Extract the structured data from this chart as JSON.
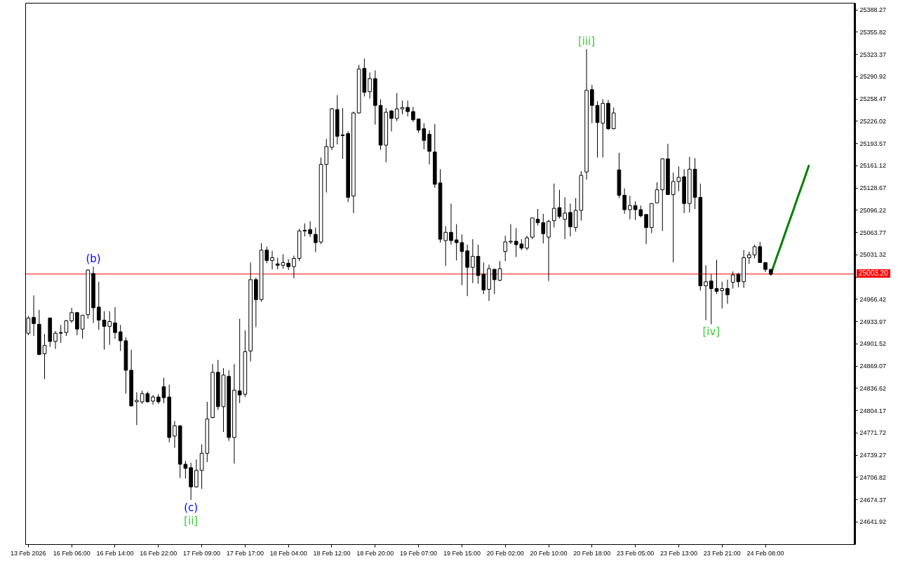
{
  "chart_data": {
    "type": "candlestick",
    "color": "#000000",
    "categories": [
      "13 Feb 2026",
      null,
      null,
      null,
      null,
      null,
      null,
      null,
      "16 Feb 06:00",
      null,
      null,
      null,
      null,
      null,
      null,
      null,
      "16 Feb 14:00",
      null,
      null,
      null,
      null,
      null,
      null,
      null,
      "16 Feb 22:00",
      null,
      null,
      null,
      null,
      null,
      null,
      null,
      "17 Feb 09:00",
      null,
      null,
      null,
      null,
      null,
      null,
      null,
      "17 Feb 17:00",
      null,
      null,
      null,
      null,
      null,
      null,
      null,
      "18 Feb 04:00",
      null,
      null,
      null,
      null,
      null,
      null,
      null,
      "18 Feb 12:00",
      null,
      null,
      null,
      null,
      null,
      null,
      null,
      "18 Feb 20:00",
      null,
      null,
      null,
      null,
      null,
      null,
      null,
      "19 Feb 07:00",
      null,
      null,
      null,
      null,
      null,
      null,
      null,
      "19 Feb 15:00",
      null,
      null,
      null,
      null,
      null,
      null,
      null,
      "20 Feb 02:00",
      null,
      null,
      null,
      null,
      null,
      null,
      null,
      "20 Feb 10:00",
      null,
      null,
      null,
      null,
      null,
      null,
      null,
      "20 Feb 18:00",
      null,
      null,
      null,
      null,
      null,
      null,
      null,
      "23 Feb 05:00",
      null,
      null,
      null,
      null,
      null,
      null,
      null,
      "23 Feb 13:00",
      null,
      null,
      null,
      null,
      null,
      null,
      null,
      "23 Feb 21:00",
      null,
      null,
      null,
      null,
      null,
      null,
      null,
      "24 Feb 08:00",
      null,
      null,
      null,
      null,
      null,
      null,
      null,
      null,
      null,
      null,
      null,
      null,
      null,
      null,
      null,
      null
    ],
    "ohlc": [
      [
        24917,
        24942,
        24914,
        24939
      ],
      [
        24940,
        24972,
        24913,
        24931
      ],
      [
        24930,
        24951,
        24885,
        24886
      ],
      [
        24887,
        24916,
        24850,
        24899
      ],
      [
        24939,
        24940,
        24897,
        24905
      ],
      [
        24905,
        24920,
        24894,
        24917
      ],
      [
        24918,
        24929,
        24903,
        24917
      ],
      [
        24918,
        24936,
        24913,
        24935
      ],
      [
        24935,
        24954,
        24932,
        24947
      ],
      [
        24947,
        24948,
        24914,
        24923
      ],
      [
        24923,
        24944,
        24909,
        24943
      ],
      [
        24944,
        25010,
        24938,
        25009
      ],
      [
        25004,
        25014,
        24932,
        24954
      ],
      [
        24955,
        24992,
        24922,
        24936
      ],
      [
        24936,
        24949,
        24893,
        24927
      ],
      [
        24927,
        24949,
        24900,
        24934
      ],
      [
        24932,
        24955,
        24909,
        24918
      ],
      [
        24919,
        24929,
        24891,
        24906
      ],
      [
        24906,
        24911,
        24829,
        24863
      ],
      [
        24863,
        24893,
        24810,
        24811
      ],
      [
        24817,
        24831,
        24783,
        24819
      ],
      [
        24817,
        24833,
        24814,
        24829
      ],
      [
        24829,
        24832,
        24816,
        24817
      ],
      [
        24818,
        24827,
        24813,
        24824
      ],
      [
        24824,
        24828,
        24814,
        24817
      ],
      [
        24839,
        24852,
        24815,
        24823
      ],
      [
        24824,
        24842,
        24758,
        24765
      ],
      [
        24767,
        24789,
        24750,
        24782
      ],
      [
        24782,
        24783,
        24706,
        24726
      ],
      [
        24726,
        24731,
        24705,
        24720
      ],
      [
        24721,
        24728,
        24674,
        24693
      ],
      [
        24693,
        24733,
        24692,
        24717
      ],
      [
        24717,
        24755,
        24690,
        24742
      ],
      [
        24742,
        24817,
        24729,
        24792
      ],
      [
        24794,
        24872,
        24793,
        24860
      ],
      [
        24860,
        24878,
        24805,
        24810
      ],
      [
        24810,
        24866,
        24773,
        24856
      ],
      [
        24854,
        24863,
        24760,
        24765
      ],
      [
        24765,
        24872,
        24727,
        24834
      ],
      [
        24833,
        24938,
        24815,
        24827
      ],
      [
        24828,
        24921,
        24824,
        24890
      ],
      [
        24891,
        25020,
        24876,
        24995
      ],
      [
        24995,
        24998,
        24926,
        24966
      ],
      [
        24966,
        25048,
        24963,
        25038
      ],
      [
        25038,
        25043,
        25019,
        25023
      ],
      [
        25023,
        25037,
        25010,
        25027
      ],
      [
        25018,
        25027,
        25010,
        25016
      ],
      [
        25016,
        25032,
        25011,
        25020
      ],
      [
        25019,
        25025,
        25009,
        25014
      ],
      [
        25014,
        25030,
        24997,
        25026
      ],
      [
        25026,
        25069,
        25022,
        25066
      ],
      [
        25067,
        25077,
        25058,
        25066
      ],
      [
        25068,
        25080,
        25057,
        25062
      ],
      [
        25061,
        25071,
        25035,
        25049
      ],
      [
        25050,
        25173,
        25047,
        25163
      ],
      [
        25163,
        25200,
        25122,
        25189
      ],
      [
        25188,
        25245,
        25184,
        25244
      ],
      [
        25243,
        25264,
        25192,
        25204
      ],
      [
        25206,
        25245,
        25171,
        25205
      ],
      [
        25208,
        25211,
        25108,
        25115
      ],
      [
        25117,
        25240,
        25092,
        25238
      ],
      [
        25238,
        25308,
        25237,
        25302
      ],
      [
        25303,
        25317,
        25262,
        25268
      ],
      [
        25269,
        25297,
        25259,
        25288
      ],
      [
        25288,
        25300,
        25221,
        25249
      ],
      [
        25249,
        25258,
        25184,
        25191
      ],
      [
        25191,
        25245,
        25166,
        25239
      ],
      [
        25241,
        25242,
        25211,
        25230
      ],
      [
        25230,
        25267,
        25226,
        25244
      ],
      [
        25244,
        25256,
        25236,
        25246
      ],
      [
        25246,
        25256,
        25233,
        25240
      ],
      [
        25240,
        25247,
        25225,
        25228
      ],
      [
        25229,
        25230,
        25209,
        25213
      ],
      [
        25215,
        25223,
        25185,
        25198
      ],
      [
        25207,
        25213,
        25163,
        25182
      ],
      [
        25181,
        25222,
        25129,
        25134
      ],
      [
        25136,
        25156,
        25049,
        25054
      ],
      [
        25052,
        25073,
        25015,
        25064
      ],
      [
        25064,
        25106,
        25046,
        25052
      ],
      [
        25053,
        25076,
        25023,
        25049
      ],
      [
        25049,
        25061,
        24987,
        25036
      ],
      [
        25037,
        25046,
        24971,
        25013
      ],
      [
        25013,
        25054,
        24990,
        25029
      ],
      [
        25029,
        25046,
        24989,
        25001
      ],
      [
        25003,
        25020,
        24974,
        24980
      ],
      [
        24981,
        25017,
        24964,
        25011
      ],
      [
        25010,
        25011,
        24974,
        24995
      ],
      [
        24994,
        25022,
        24993,
        25011
      ],
      [
        25036,
        25059,
        25022,
        25050
      ],
      [
        25050,
        25076,
        25047,
        25051
      ],
      [
        25051,
        25070,
        25028,
        25046
      ],
      [
        25047,
        25054,
        25038,
        25041
      ],
      [
        25041,
        25059,
        25038,
        25056
      ],
      [
        25057,
        25085,
        25054,
        25085
      ],
      [
        25083,
        25098,
        25074,
        25078
      ],
      [
        25078,
        25091,
        25048,
        25062
      ],
      [
        25057,
        25082,
        24993,
        25080
      ],
      [
        25081,
        25135,
        25071,
        25099
      ],
      [
        25100,
        25126,
        25084,
        25087
      ],
      [
        25083,
        25115,
        25054,
        25092
      ],
      [
        25093,
        25106,
        25058,
        25072
      ],
      [
        25071,
        25114,
        25065,
        25096
      ],
      [
        25096,
        25153,
        25081,
        25147
      ],
      [
        25152,
        25331,
        25141,
        25271
      ],
      [
        25272,
        25279,
        25223,
        25249
      ],
      [
        25249,
        25255,
        25173,
        25224
      ],
      [
        25223,
        25258,
        25173,
        25252
      ],
      [
        25252,
        25257,
        25213,
        25215
      ],
      [
        25215,
        25246,
        25214,
        25238
      ],
      [
        25155,
        25180,
        25114,
        25118
      ],
      [
        25118,
        25128,
        25091,
        25097
      ],
      [
        25097,
        25117,
        25083,
        25103
      ],
      [
        25103,
        25109,
        25082,
        25097
      ],
      [
        25097,
        25103,
        25086,
        25088
      ],
      [
        25090,
        25090,
        25047,
        25071
      ],
      [
        25071,
        25106,
        25063,
        25106
      ],
      [
        25107,
        25137,
        25107,
        25126
      ],
      [
        25126,
        25172,
        25066,
        25171
      ],
      [
        25171,
        25193,
        25119,
        25119
      ],
      [
        25119,
        25151,
        25020,
        25138
      ],
      [
        25138,
        25160,
        25124,
        25144
      ],
      [
        25145,
        25156,
        25092,
        25106
      ],
      [
        25106,
        25174,
        25093,
        25156
      ],
      [
        25156,
        25172,
        25098,
        25115
      ],
      [
        25115,
        25135,
        24979,
        24986
      ],
      [
        24986,
        25016,
        24936,
        24992
      ],
      [
        24993,
        25003,
        24930,
        24982
      ],
      [
        24982,
        25024,
        24974,
        24978
      ],
      [
        24979,
        24992,
        24953,
        24982
      ],
      [
        24982,
        24995,
        24960,
        24973
      ],
      [
        24991,
        25007,
        24982,
        25002
      ],
      [
        25003,
        25005,
        24984,
        24992
      ],
      [
        24992,
        25038,
        24983,
        25027
      ],
      [
        25027,
        25036,
        25018,
        25031
      ],
      [
        25031,
        25046,
        25026,
        25043
      ],
      [
        25043,
        25050,
        25020,
        25020
      ],
      [
        25020,
        25020,
        25006,
        25010
      ],
      [
        25010,
        25010,
        25001,
        25003
      ],
      null,
      null,
      null,
      null,
      null,
      null,
      null,
      null,
      null,
      null,
      null,
      null,
      null,
      null,
      null
    ],
    "series": [
      {
        "type": "line",
        "color": "#008000",
        "values": [
          null,
          null,
          null,
          null,
          null,
          null,
          null,
          null,
          null,
          null,
          null,
          null,
          null,
          null,
          null,
          null,
          null,
          null,
          null,
          null,
          null,
          null,
          null,
          null,
          null,
          null,
          null,
          null,
          null,
          null,
          null,
          null,
          null,
          null,
          null,
          null,
          null,
          null,
          null,
          null,
          null,
          null,
          null,
          null,
          null,
          null,
          null,
          null,
          null,
          null,
          null,
          null,
          null,
          null,
          null,
          null,
          null,
          null,
          null,
          null,
          null,
          null,
          null,
          null,
          null,
          null,
          null,
          null,
          null,
          null,
          null,
          null,
          null,
          null,
          null,
          null,
          null,
          null,
          null,
          null,
          null,
          null,
          null,
          null,
          null,
          null,
          null,
          null,
          null,
          null,
          null,
          null,
          null,
          null,
          null,
          null,
          null,
          null,
          null,
          null,
          null,
          null,
          null,
          null,
          null,
          null,
          null,
          null,
          null,
          null,
          null,
          null,
          null,
          null,
          null,
          null,
          null,
          null,
          null,
          null,
          null,
          null,
          null,
          null,
          null,
          null,
          null,
          null,
          null,
          null,
          null,
          null,
          null,
          null,
          null,
          null,
          null,
          25003,
          25026,
          25048,
          25071,
          25093,
          25116,
          25138,
          25161,
          null,
          null,
          null,
          null,
          null,
          null,
          null,
          null
        ]
      }
    ],
    "ylim": [
      24609,
      25398
    ],
    "yticks": [
      25388.27,
      25355.82,
      25323.37,
      25290.92,
      25258.47,
      25226.02,
      25193.57,
      25161.12,
      25128.67,
      25096.22,
      25063.77,
      25031.32,
      {
        "value": 24998.87,
        "label": null
      },
      24966.42,
      24933.97,
      24901.52,
      24869.07,
      24836.62,
      24804.17,
      24771.72,
      24739.27,
      24706.82,
      24674.37,
      24641.92
    ],
    "ref_lines": [
      {
        "axis": "y",
        "value": 25003.2,
        "label": "25003.20",
        "color": "#ff0000"
      }
    ],
    "annotations": [
      {
        "text": "(b)",
        "y": 25014
      },
      {
        "text": "(c)",
        "y": 24674
      },
      {
        "text": "[ii]",
        "y": 24674
      },
      {
        "text": "[iii]",
        "y": 25331
      },
      {
        "text": "[iv]",
        "y": 24930
      }
    ]
  }
}
